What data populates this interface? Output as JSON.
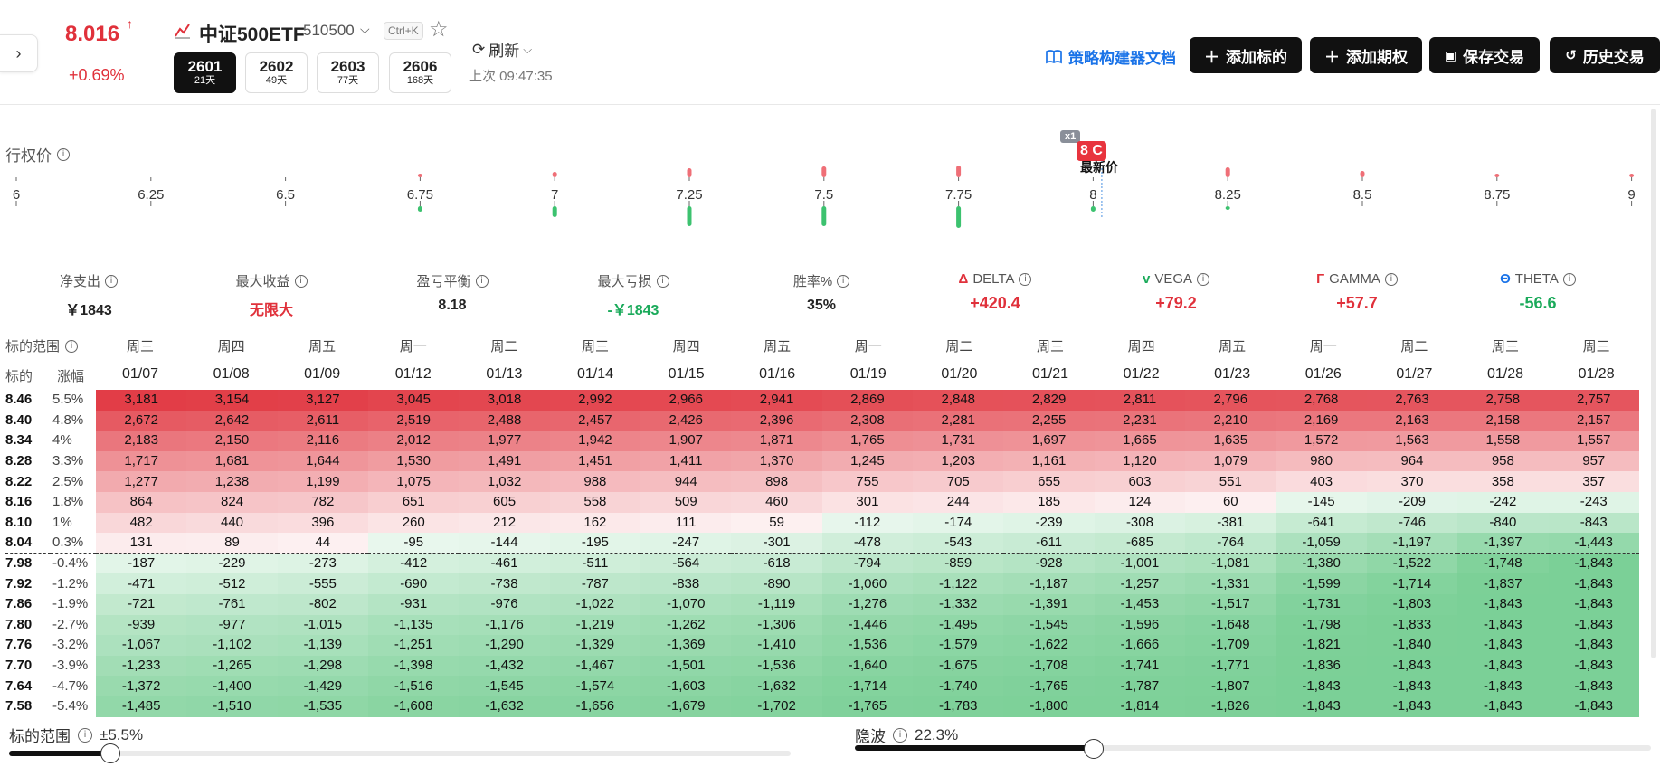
{
  "header": {
    "price": "8.016",
    "price_arrow": "↑",
    "price_change": "+0.69%",
    "underlying_name": "中证500ETF",
    "underlying_code": "510500",
    "shortcut": "Ctrl+K",
    "expiries": [
      {
        "month": "2601",
        "days": "21天",
        "active": true
      },
      {
        "month": "2602",
        "days": "49天",
        "active": false
      },
      {
        "month": "2603",
        "days": "77天",
        "active": false
      },
      {
        "month": "2606",
        "days": "168天",
        "active": false
      }
    ],
    "refresh_label": "刷新",
    "last_update": "上次 09:47:35",
    "docs_link": "策略构建器文档",
    "buttons": {
      "add_underlying": "添加标的",
      "add_option": "添加期权",
      "save_trade": "保存交易",
      "history_trade": "历史交易"
    }
  },
  "strike_axis": {
    "label": "行权价",
    "strikes": [
      "6",
      "6.25",
      "6.5",
      "6.75",
      "7",
      "7.25",
      "7.5",
      "7.75",
      "8",
      "8.25",
      "8.5",
      "8.75",
      "9"
    ],
    "red_heights": [
      0,
      0,
      0,
      4,
      6,
      10,
      12,
      13,
      0,
      11,
      7,
      4,
      4
    ],
    "green_heights": [
      0,
      0,
      0,
      6,
      12,
      22,
      22,
      24,
      6,
      4,
      0,
      0,
      0
    ],
    "position_badge_count": "x1",
    "position_badge": "8 C",
    "latest_price_label": "最新价"
  },
  "metrics": [
    {
      "label": "净支出",
      "value": "￥1843",
      "color": "#222",
      "prefix": "",
      "prefix_color": ""
    },
    {
      "label": "最大收益",
      "value": "无限大",
      "color": "#e0313b",
      "prefix": "",
      "prefix_color": ""
    },
    {
      "label": "盈亏平衡",
      "value": "8.18",
      "color": "#222",
      "prefix": "",
      "prefix_color": ""
    },
    {
      "label": "最大亏损",
      "value": "-￥1843",
      "color": "#1aaa5a",
      "prefix": "",
      "prefix_color": ""
    },
    {
      "label": "胜率%",
      "value": "35%",
      "color": "#222",
      "prefix": "",
      "prefix_color": ""
    },
    {
      "label": "DELTA",
      "value": "+420.4",
      "color": "#e0313b",
      "prefix": "Δ",
      "prefix_color": "#e0313b"
    },
    {
      "label": "VEGA",
      "value": "+79.2",
      "color": "#e0313b",
      "prefix": "v",
      "prefix_color": "#1aaa5a"
    },
    {
      "label": "GAMMA",
      "value": "+57.7",
      "color": "#e0313b",
      "prefix": "Γ",
      "prefix_color": "#e0313b"
    },
    {
      "label": "THETA",
      "value": "-56.6",
      "color": "#1aaa5a",
      "prefix": "Θ",
      "prefix_color": "#1a73e8"
    }
  ],
  "table": {
    "range_label": "标的范围",
    "col_underlying": "标的",
    "col_change": "涨幅",
    "weekdays": [
      "周三",
      "周四",
      "周五",
      "周一",
      "周二",
      "周三",
      "周四",
      "周五",
      "周一",
      "周二",
      "周三",
      "周四",
      "周五",
      "周一",
      "周二",
      "周三",
      "周三"
    ],
    "dates": [
      "01/07",
      "01/08",
      "01/09",
      "01/12",
      "01/13",
      "01/14",
      "01/15",
      "01/16",
      "01/19",
      "01/20",
      "01/21",
      "01/22",
      "01/23",
      "01/26",
      "01/27",
      "01/28",
      "01/28"
    ],
    "rows": [
      {
        "price": "8.46",
        "change": "5.5%",
        "values": [
          3181,
          3154,
          3127,
          3045,
          3018,
          2992,
          2966,
          2941,
          2869,
          2848,
          2829,
          2811,
          2796,
          2768,
          2763,
          2758,
          2757
        ]
      },
      {
        "price": "8.40",
        "change": "4.8%",
        "values": [
          2672,
          2642,
          2611,
          2519,
          2488,
          2457,
          2426,
          2396,
          2308,
          2281,
          2255,
          2231,
          2210,
          2169,
          2163,
          2158,
          2157
        ]
      },
      {
        "price": "8.34",
        "change": "4%",
        "values": [
          2183,
          2150,
          2116,
          2012,
          1977,
          1942,
          1907,
          1871,
          1765,
          1731,
          1697,
          1665,
          1635,
          1572,
          1563,
          1558,
          1557
        ]
      },
      {
        "price": "8.28",
        "change": "3.3%",
        "values": [
          1717,
          1681,
          1644,
          1530,
          1491,
          1451,
          1411,
          1370,
          1245,
          1203,
          1161,
          1120,
          1079,
          980,
          964,
          958,
          957
        ]
      },
      {
        "price": "8.22",
        "change": "2.5%",
        "values": [
          1277,
          1238,
          1199,
          1075,
          1032,
          988,
          944,
          898,
          755,
          705,
          655,
          603,
          551,
          403,
          370,
          358,
          357
        ]
      },
      {
        "price": "8.16",
        "change": "1.8%",
        "values": [
          864,
          824,
          782,
          651,
          605,
          558,
          509,
          460,
          301,
          244,
          185,
          124,
          60,
          -145,
          -209,
          -242,
          -243
        ]
      },
      {
        "price": "8.10",
        "change": "1%",
        "values": [
          482,
          440,
          396,
          260,
          212,
          162,
          111,
          59,
          -112,
          -174,
          -239,
          -308,
          -381,
          -641,
          -746,
          -840,
          -843
        ]
      },
      {
        "price": "8.04",
        "change": "0.3%",
        "values": [
          131,
          89,
          44,
          -95,
          -144,
          -195,
          -247,
          -301,
          -478,
          -543,
          -611,
          -685,
          -764,
          -1059,
          -1197,
          -1397,
          -1443
        ]
      },
      {
        "price": "7.98",
        "change": "-0.4%",
        "values": [
          -187,
          -229,
          -273,
          -412,
          -461,
          -511,
          -564,
          -618,
          -794,
          -859,
          -928,
          -1001,
          -1081,
          -1380,
          -1522,
          -1748,
          -1843
        ]
      },
      {
        "price": "7.92",
        "change": "-1.2%",
        "values": [
          -471,
          -512,
          -555,
          -690,
          -738,
          -787,
          -838,
          -890,
          -1060,
          -1122,
          -1187,
          -1257,
          -1331,
          -1599,
          -1714,
          -1837,
          -1843
        ]
      },
      {
        "price": "7.86",
        "change": "-1.9%",
        "values": [
          -721,
          -761,
          -802,
          -931,
          -976,
          -1022,
          -1070,
          -1119,
          -1276,
          -1332,
          -1391,
          -1453,
          -1517,
          -1731,
          -1803,
          -1843,
          -1843
        ]
      },
      {
        "price": "7.80",
        "change": "-2.7%",
        "values": [
          -939,
          -977,
          -1015,
          -1135,
          -1176,
          -1219,
          -1262,
          -1306,
          -1446,
          -1495,
          -1545,
          -1596,
          -1648,
          -1798,
          -1833,
          -1843,
          -1843
        ]
      },
      {
        "price": "7.76",
        "change": "-3.2%",
        "values": [
          -1067,
          -1102,
          -1139,
          -1251,
          -1290,
          -1329,
          -1369,
          -1410,
          -1536,
          -1579,
          -1622,
          -1666,
          -1709,
          -1821,
          -1840,
          -1843,
          -1843
        ]
      },
      {
        "price": "7.70",
        "change": "-3.9%",
        "values": [
          -1233,
          -1265,
          -1298,
          -1398,
          -1432,
          -1467,
          -1501,
          -1536,
          -1640,
          -1675,
          -1708,
          -1741,
          -1771,
          -1836,
          -1843,
          -1843,
          -1843
        ]
      },
      {
        "price": "7.64",
        "change": "-4.7%",
        "values": [
          -1372,
          -1400,
          -1429,
          -1516,
          -1545,
          -1574,
          -1603,
          -1632,
          -1714,
          -1740,
          -1765,
          -1787,
          -1807,
          -1843,
          -1843,
          -1843,
          -1843
        ]
      },
      {
        "price": "7.58",
        "change": "-5.4%",
        "values": [
          -1485,
          -1510,
          -1535,
          -1608,
          -1632,
          -1656,
          -1679,
          -1702,
          -1765,
          -1783,
          -1800,
          -1814,
          -1826,
          -1843,
          -1843,
          -1843,
          -1843
        ]
      }
    ],
    "separator_after_row": 7
  },
  "sliders": {
    "range_label": "标的范围",
    "range_value": "±5.5%",
    "range_fraction": 0.13,
    "iv_label": "隐波",
    "iv_value": "22.3%",
    "iv_fraction": 0.3
  },
  "colors": {
    "red": "#e0313b",
    "green": "#1aaa5a",
    "blue": "#1a73e8",
    "dark": "#111111"
  }
}
